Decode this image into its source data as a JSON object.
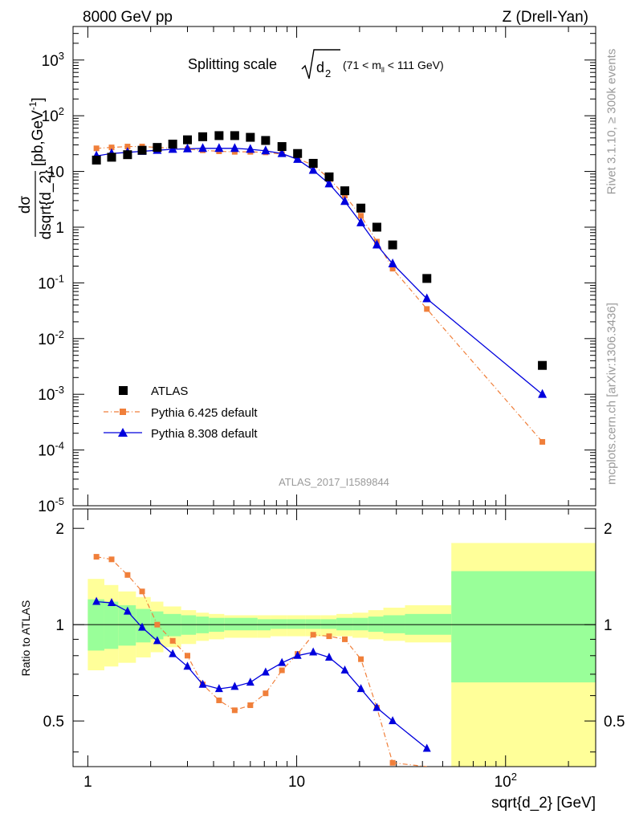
{
  "header": {
    "energy_label": "8000 GeV pp",
    "process_label": "Z (Drell-Yan)"
  },
  "plot_title": {
    "main": "Splitting scale",
    "symbol": "d",
    "sub": "2",
    "range_pre": "(71 < m",
    "range_sub": "ll",
    "range_post": " < 111 GeV)"
  },
  "analysis_label": "ATLAS_2017_I1589844",
  "side_labels": {
    "rivet": "Rivet 3.1.10, ≥ 300k events",
    "mcplots": "mcplots.cern.ch [arXiv:1306.3436]"
  },
  "axes": {
    "ylabel_top": "dσ / dsqrt{d_2} [pb,GeV⁻¹]",
    "ylabel_top_num": "dσ",
    "ylabel_top_den": "dsqrt{d_2}",
    "ylabel_top_unit": "[pb,GeV",
    "ylabel_top_unit_exp": "-1",
    "ylabel_top_unit_end": "]",
    "ylabel_bottom": "Ratio to ATLAS",
    "xlabel": "sqrt{d_2} [GeV]",
    "xticks": [
      {
        "value": 1,
        "label": "1"
      },
      {
        "value": 10,
        "label": "10"
      },
      {
        "value": 100,
        "label": "10",
        "exp": "2"
      }
    ],
    "yticks_top": [
      {
        "value": 1e-05,
        "label": "10",
        "exp": "-5"
      },
      {
        "value": 0.0001,
        "label": "10",
        "exp": "-4"
      },
      {
        "value": 0.001,
        "label": "10",
        "exp": "-3"
      },
      {
        "value": 0.01,
        "label": "10",
        "exp": "-2"
      },
      {
        "value": 0.1,
        "label": "10",
        "exp": "-1"
      },
      {
        "value": 1,
        "label": "1"
      },
      {
        "value": 10,
        "label": "10"
      },
      {
        "value": 100,
        "label": "10",
        "exp": "2"
      },
      {
        "value": 1000,
        "label": "10",
        "exp": "3"
      }
    ],
    "yticks_bottom": [
      {
        "value": 0.5,
        "label": "0.5"
      },
      {
        "value": 1,
        "label": "1"
      },
      {
        "value": 2,
        "label": "2"
      }
    ]
  },
  "legend": [
    {
      "label": "ATLAS"
    },
    {
      "label": "Pythia 6.425 default"
    },
    {
      "label": "Pythia 8.308 default"
    }
  ],
  "colors": {
    "atlas": "#000000",
    "pythia6": "#f07f3a",
    "pythia8": "#0000dd",
    "band_outer": "#ffff99",
    "band_inner": "#99ff99",
    "side_text": "#9a9a9a"
  },
  "chart_data": [
    {
      "type": "scatter",
      "panel": "main",
      "x_scale": "log",
      "y_scale": "log",
      "xlim": [
        0.85,
        270
      ],
      "ylim": [
        1e-05,
        4000
      ],
      "x": [
        1.1,
        1.3,
        1.55,
        1.82,
        2.15,
        2.55,
        3.0,
        3.55,
        4.25,
        5.05,
        6.0,
        7.1,
        8.5,
        10.1,
        12.0,
        14.3,
        17.0,
        20.3,
        24.2,
        28.8,
        42.0,
        150.0
      ],
      "series": [
        {
          "name": "ATLAS",
          "style": "square",
          "values": [
            16,
            18,
            20,
            24,
            27,
            31,
            37,
            42,
            44,
            44,
            41,
            36,
            28,
            21,
            14,
            8,
            4.5,
            2.2,
            1.0,
            0.48,
            0.12,
            0.0033
          ]
        },
        {
          "name": "Pythia 6.425 default",
          "style": "square-dashdot",
          "values": [
            26,
            27,
            28,
            28,
            27,
            26,
            25,
            24,
            23,
            22.5,
            22.5,
            22,
            20.5,
            17,
            13,
            7.5,
            3.7,
            1.6,
            0.55,
            0.18,
            0.034,
            0.00014
          ]
        },
        {
          "name": "Pythia 8.308 default",
          "style": "triangle-solid",
          "values": [
            19,
            21,
            22,
            23,
            24,
            25,
            25.5,
            26,
            26,
            26,
            25,
            23.5,
            21,
            16.5,
            10.5,
            6,
            2.9,
            1.2,
            0.48,
            0.22,
            0.052,
            0.001
          ]
        }
      ]
    },
    {
      "type": "line",
      "panel": "ratio",
      "x_scale": "log",
      "xlim": [
        0.85,
        270
      ],
      "ylim": [
        0.36,
        2.3
      ],
      "x": [
        1.1,
        1.3,
        1.55,
        1.82,
        2.15,
        2.55,
        3.0,
        3.55,
        4.25,
        5.05,
        6.0,
        7.1,
        8.5,
        10.1,
        12.0,
        14.3,
        17.0,
        20.3,
        24.2,
        28.8,
        42.0
      ],
      "series": [
        {
          "name": "Pythia 6.425 default",
          "values": [
            1.63,
            1.6,
            1.43,
            1.27,
            1.0,
            0.89,
            0.8,
            0.65,
            0.58,
            0.54,
            0.56,
            0.61,
            0.72,
            0.81,
            0.93,
            0.92,
            0.9,
            0.78,
            0.55,
            0.37,
            0.28
          ]
        },
        {
          "name": "Pythia 8.308 default",
          "values": [
            1.18,
            1.17,
            1.1,
            0.98,
            0.89,
            0.81,
            0.74,
            0.65,
            0.63,
            0.64,
            0.66,
            0.71,
            0.76,
            0.8,
            0.82,
            0.79,
            0.72,
            0.63,
            0.55,
            0.5,
            0.41
          ]
        }
      ],
      "uncertainty_bands": {
        "edges": [
          1.0,
          1.2,
          1.4,
          1.7,
          2.0,
          2.3,
          2.8,
          3.3,
          3.8,
          4.5,
          5.5,
          6.5,
          7.5,
          9.0,
          11.0,
          13.0,
          15.5,
          18.5,
          22.0,
          26.0,
          33.0,
          55.0,
          270.0
        ],
        "inner_low": [
          0.83,
          0.84,
          0.86,
          0.88,
          0.9,
          0.92,
          0.93,
          0.94,
          0.95,
          0.96,
          0.96,
          0.96,
          0.97,
          0.97,
          0.97,
          0.97,
          0.96,
          0.96,
          0.95,
          0.94,
          0.93,
          0.66
        ],
        "inner_high": [
          1.2,
          1.18,
          1.15,
          1.12,
          1.1,
          1.08,
          1.07,
          1.06,
          1.05,
          1.05,
          1.05,
          1.04,
          1.04,
          1.04,
          1.04,
          1.04,
          1.05,
          1.05,
          1.06,
          1.07,
          1.08,
          1.47
        ],
        "outer_low": [
          0.72,
          0.74,
          0.76,
          0.79,
          0.82,
          0.85,
          0.87,
          0.89,
          0.9,
          0.91,
          0.91,
          0.91,
          0.92,
          0.92,
          0.92,
          0.92,
          0.92,
          0.91,
          0.9,
          0.89,
          0.88,
          0.36
        ],
        "outer_high": [
          1.39,
          1.33,
          1.27,
          1.22,
          1.18,
          1.14,
          1.11,
          1.09,
          1.08,
          1.07,
          1.07,
          1.07,
          1.07,
          1.07,
          1.07,
          1.07,
          1.08,
          1.09,
          1.11,
          1.13,
          1.15,
          1.8
        ]
      }
    }
  ]
}
